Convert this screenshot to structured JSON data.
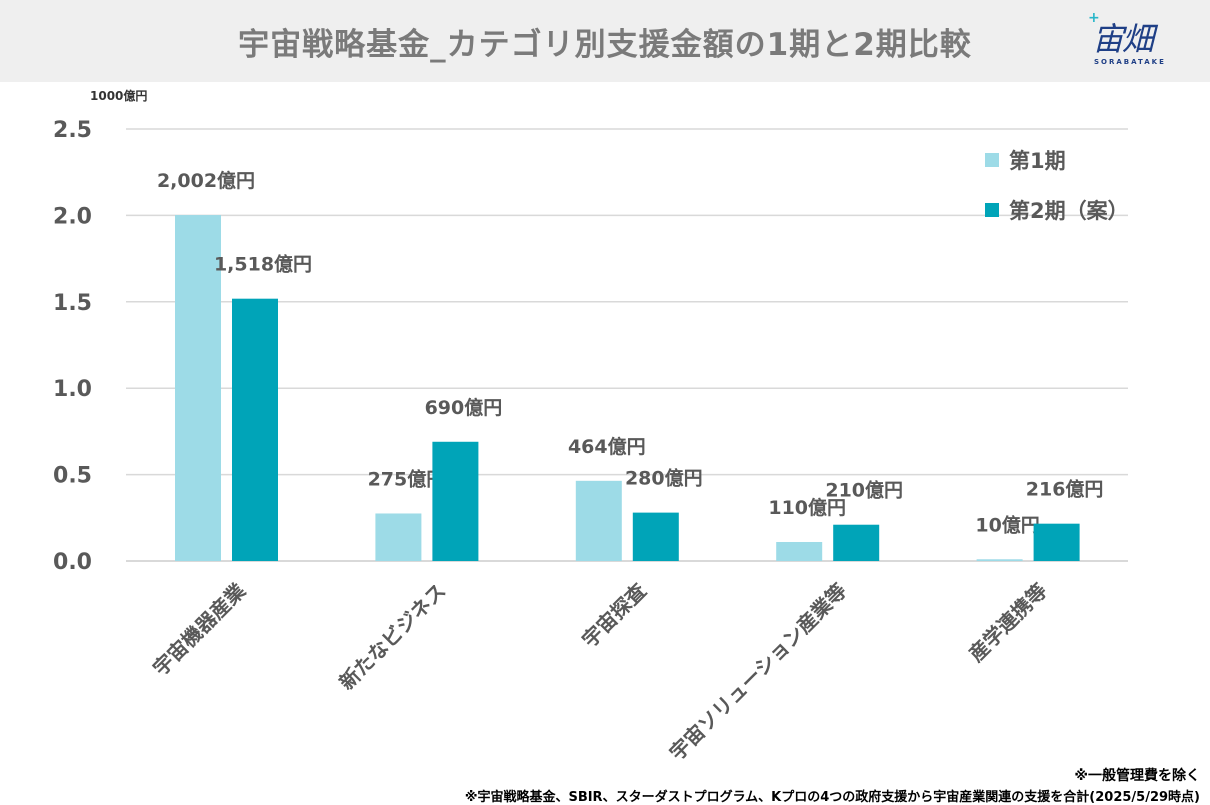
{
  "header": {
    "title": "宇宙戦略基金_カテゴリ別支援金額の1期と2期比較",
    "logo_text": "宙畑",
    "logo_sub": "SORABATAKE"
  },
  "notes": {
    "line1": "※一般管理費を除く",
    "line2": "※宇宙戦略基金、SBIR、スターダストプログラム、Kプロの4つの政府支援から宇宙産業関連の支援を合計(2025/5/29時点)"
  },
  "colors": {
    "series1": "#9ddbe7",
    "series2": "#00a4b8",
    "grid": "#d9d9d9",
    "text": "#595959"
  },
  "chart_data": {
    "type": "bar",
    "unit_label": "1000億円",
    "categories": [
      "宇宙機器産業",
      "新たなビジネス",
      "宇宙探査",
      "宇宙ソリューション産業等",
      "産学連携等"
    ],
    "series": [
      {
        "name": "第1期",
        "values": [
          2.002,
          0.275,
          0.464,
          0.11,
          0.01
        ],
        "labels": [
          "2,002億円",
          "275億円",
          "464億円",
          "110億円",
          "10億円"
        ]
      },
      {
        "name": "第2期（案）",
        "values": [
          1.518,
          0.69,
          0.28,
          0.21,
          0.216
        ],
        "labels": [
          "1,518億円",
          "690億円",
          "280億円",
          "210億円",
          "216億円"
        ]
      }
    ],
    "yticks": [
      "0.0",
      "0.5",
      "1.0",
      "1.5",
      "2.0",
      "2.5"
    ],
    "ylim": [
      0,
      2.5
    ],
    "grid": true,
    "legend_position": "top-right"
  }
}
